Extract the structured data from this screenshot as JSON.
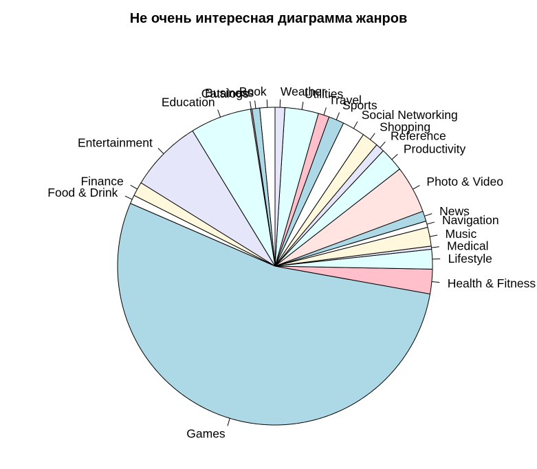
{
  "chart_data": {
    "type": "pie",
    "title": "Не очень интересная диаграмма жанров",
    "start_angle_deg": 90,
    "direction": "counterclockwise",
    "slices": [
      {
        "label": "Book",
        "value": 112,
        "color": "#FFFFFF"
      },
      {
        "label": "Business",
        "value": 57,
        "color": "#ADD8E6"
      },
      {
        "label": "Catalogs",
        "value": 10,
        "color": "#FFC0CB"
      },
      {
        "label": "Education",
        "value": 453,
        "color": "#E0FFFF"
      },
      {
        "label": "Entertainment",
        "value": 535,
        "color": "#E6E6FA"
      },
      {
        "label": "Finance",
        "value": 104,
        "color": "#FFF8DC"
      },
      {
        "label": "Food & Drink",
        "value": 63,
        "color": "#FFFFFF"
      },
      {
        "label": "Games",
        "value": 3862,
        "color": "#ADD8E6"
      },
      {
        "label": "Health & Fitness",
        "value": 180,
        "color": "#FFC0CB"
      },
      {
        "label": "Lifestyle",
        "value": 144,
        "color": "#E0FFFF"
      },
      {
        "label": "Medical",
        "value": 23,
        "color": "#E6E6FA"
      },
      {
        "label": "Music",
        "value": 138,
        "color": "#FFF8DC"
      },
      {
        "label": "Navigation",
        "value": 46,
        "color": "#FFFFFF"
      },
      {
        "label": "News",
        "value": 75,
        "color": "#ADD8E6"
      },
      {
        "label": "Photo & Video",
        "value": 349,
        "color": "#FFE4E1"
      },
      {
        "label": "Productivity",
        "value": 178,
        "color": "#E0FFFF"
      },
      {
        "label": "Reference",
        "value": 64,
        "color": "#E6E6FA"
      },
      {
        "label": "Shopping",
        "value": 122,
        "color": "#FFF8DC"
      },
      {
        "label": "Social Networking",
        "value": 167,
        "color": "#FFFFFF"
      },
      {
        "label": "Sports",
        "value": 114,
        "color": "#ADD8E6"
      },
      {
        "label": "Travel",
        "value": 81,
        "color": "#FFC0CB"
      },
      {
        "label": "Utilities",
        "value": 248,
        "color": "#E0FFFF"
      },
      {
        "label": "Weather",
        "value": 72,
        "color": "#E6E6FA"
      }
    ]
  }
}
